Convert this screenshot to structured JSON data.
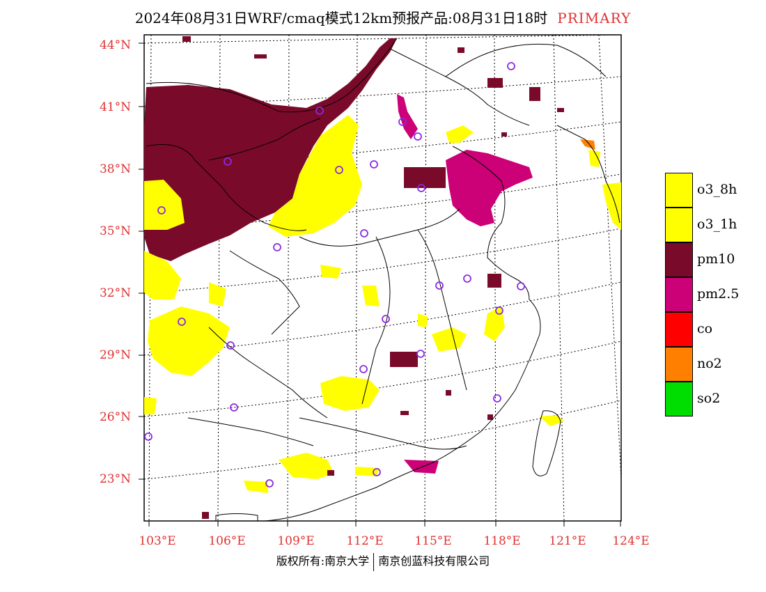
{
  "title": {
    "text": "2024年08月31日WRF/cmaq模式12km预报产品:08月31日18时",
    "tag": "PRIMARY",
    "tag_color": "#e03030"
  },
  "axes": {
    "lat_labels": [
      "44°N",
      "41°N",
      "38°N",
      "35°N",
      "32°N",
      "29°N",
      "26°N",
      "23°N"
    ],
    "lon_labels": [
      "103°E",
      "106°E",
      "109°E",
      "112°E",
      "115°E",
      "118°E",
      "121°E",
      "124°E"
    ],
    "label_color": "#e03030"
  },
  "legend": [
    {
      "label": "o3_8h",
      "color": "#ffff00"
    },
    {
      "label": "o3_1h",
      "color": "#ffff00"
    },
    {
      "label": "pm10",
      "color": "#7a0a2a"
    },
    {
      "label": "pm2.5",
      "color": "#cc0077"
    },
    {
      "label": "co",
      "color": "#ff0000"
    },
    {
      "label": "no2",
      "color": "#ff8000"
    },
    {
      "label": "so2",
      "color": "#00dd00"
    }
  ],
  "footer": {
    "left": "版权所有:南京大学",
    "right": "南京创蓝科技有限公司"
  }
}
